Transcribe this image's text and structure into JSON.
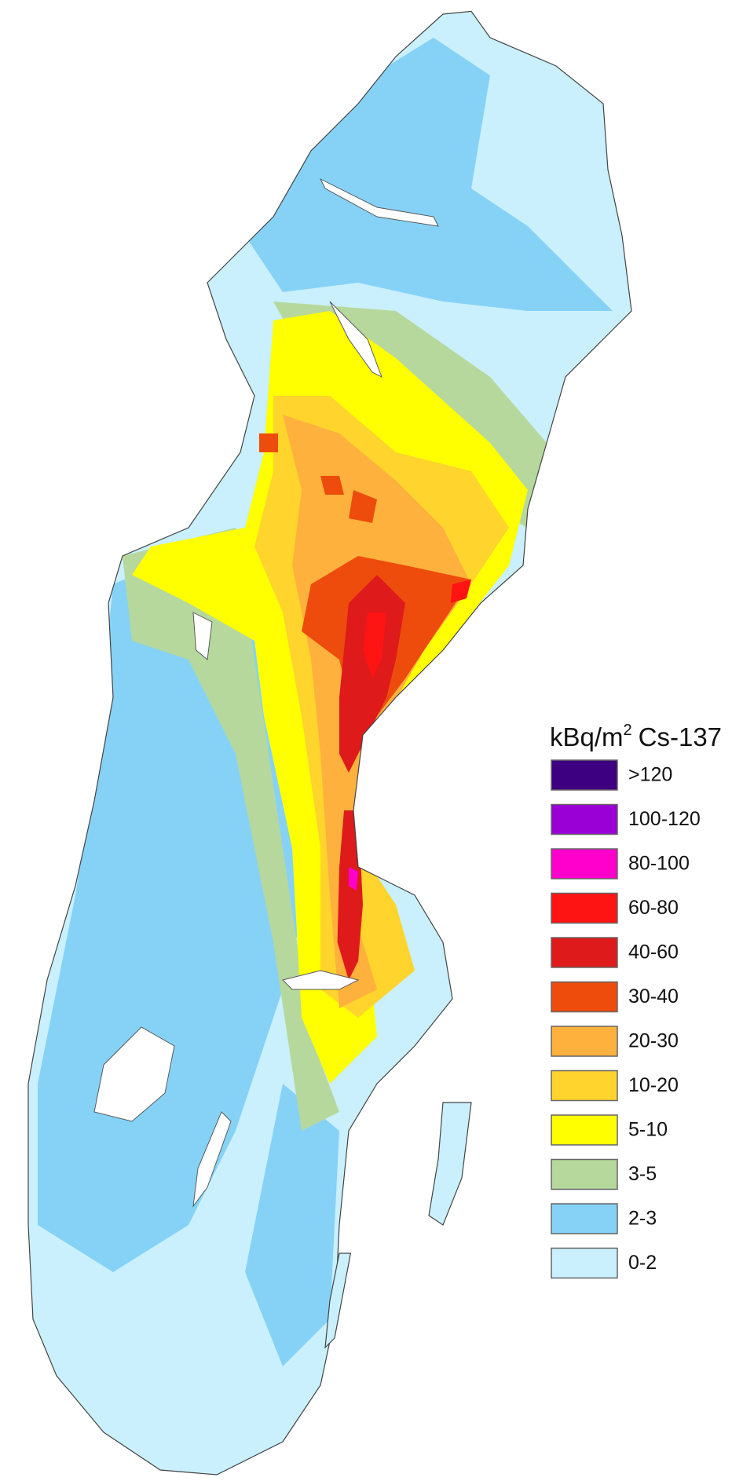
{
  "legend": {
    "title": {
      "unit": "kBq/m",
      "exponent": "2",
      "name": "Cs-137"
    },
    "items": [
      {
        "label": ">120",
        "color": "#3d0080"
      },
      {
        "label": "100-120",
        "color": "#9a00d6"
      },
      {
        "label": "80-100",
        "color": "#ff00cc"
      },
      {
        "label": "60-80",
        "color": "#ff1414"
      },
      {
        "label": "40-60",
        "color": "#de1a1a"
      },
      {
        "label": "30-40",
        "color": "#ee4c0c"
      },
      {
        "label": "20-30",
        "color": "#ffb13d"
      },
      {
        "label": "10-20",
        "color": "#ffd42c"
      },
      {
        "label": "5-10",
        "color": "#ffff00"
      },
      {
        "label": "3-5",
        "color": "#b6d89c"
      },
      {
        "label": "2-3",
        "color": "#86d2f7"
      },
      {
        "label": "0-2",
        "color": "#c9f0fc"
      }
    ]
  }
}
